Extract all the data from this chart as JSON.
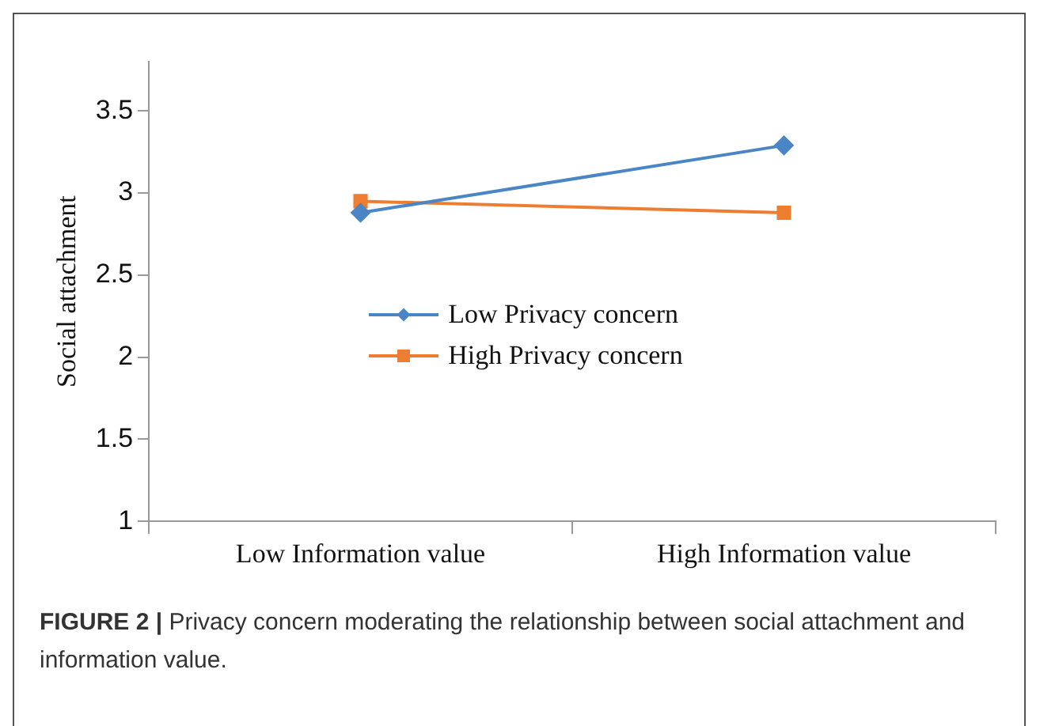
{
  "chart_data": {
    "type": "line",
    "ylabel": "Social attachment",
    "categories": [
      "Low Information value",
      "High Information value"
    ],
    "series": [
      {
        "name": "Low Privacy concern",
        "color": "#4a86c5",
        "marker": "diamond",
        "values": [
          2.88,
          3.29
        ]
      },
      {
        "name": "High Privacy concern",
        "color": "#ed7d31",
        "marker": "square",
        "values": [
          2.95,
          2.88
        ]
      }
    ],
    "ylim": [
      1,
      3.8
    ],
    "yticks": [
      1,
      1.5,
      2,
      2.5,
      3,
      3.5
    ],
    "grid": false,
    "legend": "center left",
    "annotations": [
      "FIGURE 2 | Privacy concern moderating the relationship between social attachment and information value."
    ]
  }
}
